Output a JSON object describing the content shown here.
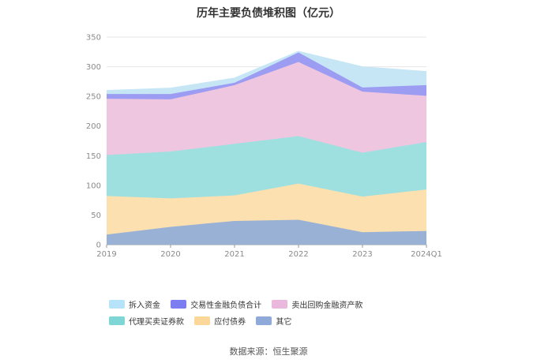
{
  "chart_data": {
    "type": "area",
    "stacked": true,
    "title": "历年主要负债堆积图（亿元）",
    "categories": [
      "2019",
      "2020",
      "2021",
      "2022",
      "2023",
      "2024Q1"
    ],
    "ylim": [
      0,
      350
    ],
    "yticks": [
      0,
      50,
      100,
      150,
      200,
      250,
      300,
      350
    ],
    "grid": true,
    "legend_position": "bottom",
    "series": [
      {
        "name": "其它",
        "color": "#9ab1d6",
        "values": [
          17,
          30,
          40,
          42,
          21,
          23
        ]
      },
      {
        "name": "应付债券",
        "color": "#fce0b0",
        "values": [
          65,
          48,
          43,
          61,
          60,
          70
        ]
      },
      {
        "name": "代理买卖证券款",
        "color": "#9ee0e0",
        "values": [
          69,
          79,
          87,
          80,
          74,
          80
        ]
      },
      {
        "name": "卖出回购金融资产款",
        "color": "#eec6e0",
        "values": [
          95,
          88,
          99,
          125,
          103,
          78
        ]
      },
      {
        "name": "交易性金融负债合计",
        "color": "#9b9cf2",
        "values": [
          8,
          9,
          4,
          16,
          7,
          18
        ]
      },
      {
        "name": "拆入资金",
        "color": "#c6e6f6",
        "values": [
          6,
          10,
          8,
          2,
          35,
          23
        ]
      }
    ]
  },
  "legend": {
    "items": [
      {
        "label": "拆入资金",
        "color": "#b6e3fa"
      },
      {
        "label": "交易性金融负债合计",
        "color": "#7b7df0"
      },
      {
        "label": "卖出回购金融资产款",
        "color": "#ebb8dd"
      },
      {
        "label": "代理买卖证券款",
        "color": "#7fd6d6"
      },
      {
        "label": "应付债券",
        "color": "#fcd79a"
      },
      {
        "label": "其它",
        "color": "#8fa9d8"
      }
    ]
  },
  "source": "数据来源：恒生聚源"
}
